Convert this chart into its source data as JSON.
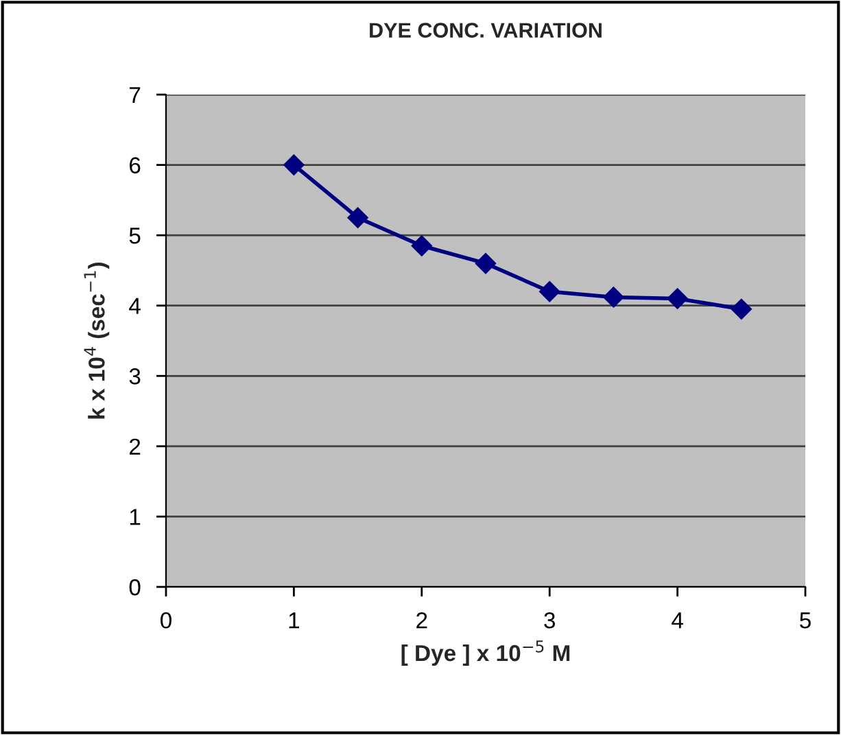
{
  "chart_data": {
    "type": "line",
    "title": "DYE CONC. VARIATION",
    "xlabel": "[ Dye ] x 10$^{−5}$ M",
    "ylabel": "k x 10$^{4}$ (sec$^{−1}$)",
    "x": [
      1,
      1.5,
      2,
      2.5,
      3,
      3.5,
      4,
      4.5
    ],
    "series": [
      {
        "color": "#000080",
        "values": [
          6.0,
          5.25,
          4.85,
          4.6,
          4.2,
          4.12,
          4.1,
          3.95
        ]
      }
    ],
    "xlim": [
      0,
      5
    ],
    "xticks": [
      0,
      1,
      2,
      3,
      4,
      5
    ],
    "ylim": [
      0,
      7
    ],
    "yticks": [
      0,
      1,
      2,
      3,
      4,
      5,
      6,
      7
    ],
    "grid": "y",
    "marker": "diamond",
    "line_style": "solid",
    "legend": false
  }
}
